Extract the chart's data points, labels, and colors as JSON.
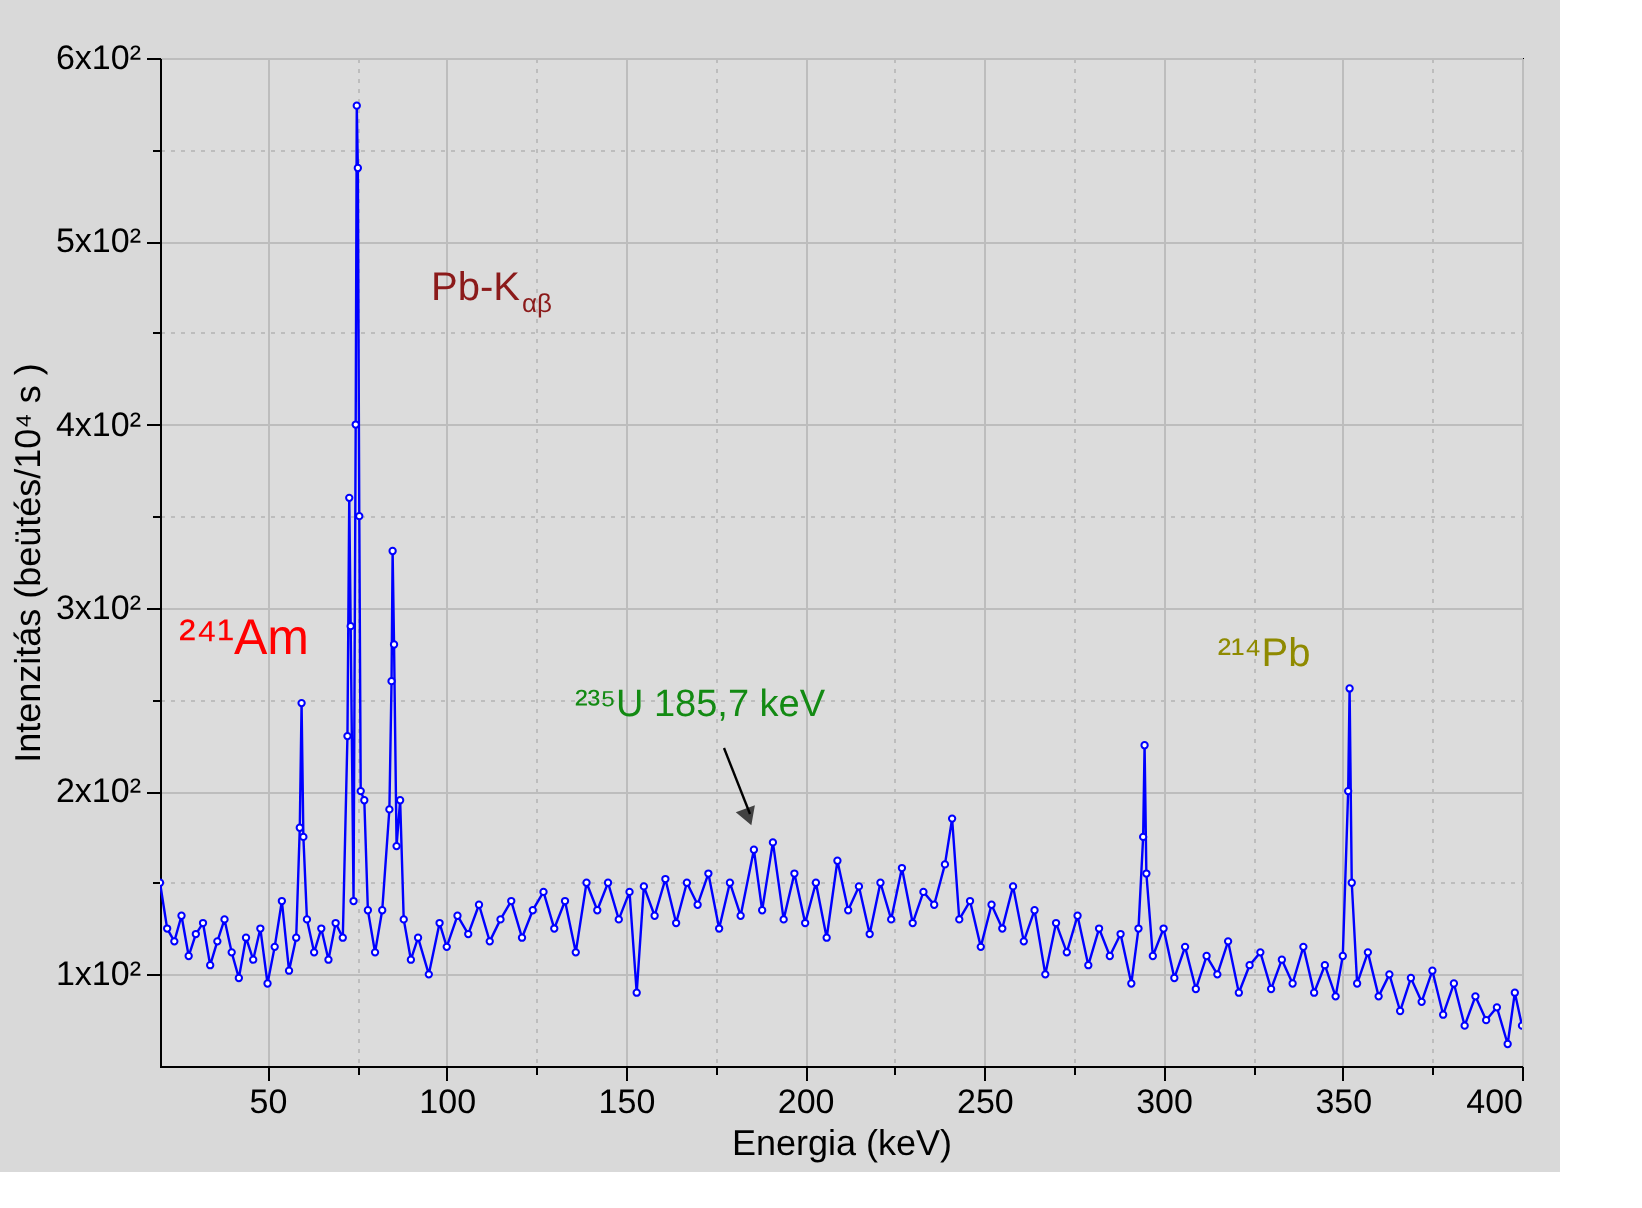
{
  "chart_data": {
    "type": "line",
    "xlabel": "Energia (keV)",
    "ylabel": "Intenzitás   (beütés/10⁴ s )",
    "xlim": [
      20,
      400
    ],
    "ylim": [
      50,
      600
    ],
    "xticks": [
      50,
      {
        "value": 75,
        "label": null
      },
      100,
      {
        "value": 125,
        "label": null
      },
      150,
      {
        "value": 175,
        "label": null
      },
      200,
      {
        "value": 225,
        "label": null
      },
      250,
      {
        "value": 275,
        "label": null
      },
      300,
      {
        "value": 325,
        "label": null
      },
      350,
      {
        "value": 375,
        "label": null
      },
      400
    ],
    "yticks": [
      {
        "value": 100,
        "label": "1x10²"
      },
      {
        "value": 150,
        "label": null
      },
      {
        "value": 200,
        "label": "2x10²"
      },
      {
        "value": 250,
        "label": null
      },
      {
        "value": 300,
        "label": "3x10²"
      },
      {
        "value": 350,
        "label": null
      },
      {
        "value": 400,
        "label": "4x10²"
      },
      {
        "value": 450,
        "label": null
      },
      {
        "value": 500,
        "label": "5x10²"
      },
      {
        "value": 550,
        "label": null
      },
      {
        "value": 600,
        "label": "6x10²"
      }
    ],
    "grid": true,
    "marker": "circle",
    "line_style": "solid",
    "annotations": [
      "²⁴¹Am",
      "Pb-K$_{αβ}$",
      "²³⁵U  185,7 keV",
      "²¹⁴Pb"
    ],
    "series": [
      {
        "color": "#0000ff",
        "x": [
          20,
          22,
          24,
          26,
          28,
          30,
          32,
          34,
          36,
          38,
          40,
          42,
          44,
          46,
          48,
          50,
          52,
          54,
          56,
          58,
          59,
          59.5,
          60,
          61,
          63,
          65,
          67,
          69,
          71,
          72.3,
          72.8,
          73.2,
          74,
          74.6,
          74.9,
          75.2,
          75.6,
          76,
          77,
          78,
          80,
          82,
          84,
          84.6,
          84.9,
          85.3,
          86,
          87,
          88,
          90,
          92,
          95,
          98,
          100,
          103,
          106,
          109,
          112,
          115,
          118,
          121,
          124,
          127,
          130,
          133,
          136,
          139,
          142,
          145,
          148,
          151,
          153,
          155,
          158,
          161,
          164,
          167,
          170,
          173,
          176,
          179,
          182,
          185.7,
          188,
          191,
          194,
          197,
          200,
          203,
          206,
          209,
          212,
          215,
          218,
          221,
          224,
          227,
          230,
          233,
          236,
          239,
          241,
          243,
          246,
          249,
          252,
          255,
          258,
          261,
          264,
          267,
          270,
          273,
          276,
          279,
          282,
          285,
          288,
          291,
          293,
          294.3,
          294.7,
          295.2,
          297,
          300,
          303,
          306,
          309,
          312,
          315,
          318,
          321,
          324,
          327,
          330,
          333,
          336,
          339,
          342,
          345,
          348,
          350,
          351.5,
          351.9,
          352.5,
          354,
          357,
          360,
          363,
          366,
          369,
          372,
          375,
          378,
          381,
          384,
          387,
          390,
          393,
          396,
          398,
          400
        ],
        "values": [
          150,
          125,
          118,
          132,
          110,
          122,
          128,
          105,
          118,
          130,
          112,
          98,
          120,
          108,
          125,
          95,
          115,
          140,
          102,
          120,
          180,
          248,
          175,
          130,
          112,
          125,
          108,
          128,
          120,
          230,
          360,
          290,
          140,
          400,
          574,
          540,
          350,
          200,
          195,
          135,
          112,
          135,
          190,
          260,
          331,
          280,
          170,
          195,
          130,
          108,
          120,
          100,
          128,
          115,
          132,
          122,
          138,
          118,
          130,
          140,
          120,
          135,
          145,
          125,
          140,
          112,
          150,
          135,
          150,
          130,
          145,
          90,
          148,
          132,
          152,
          128,
          150,
          138,
          155,
          125,
          150,
          132,
          168,
          135,
          172,
          130,
          155,
          128,
          150,
          120,
          162,
          135,
          148,
          122,
          150,
          130,
          158,
          128,
          145,
          138,
          160,
          185,
          130,
          140,
          115,
          138,
          125,
          148,
          118,
          135,
          100,
          128,
          112,
          132,
          105,
          125,
          110,
          122,
          95,
          125,
          175,
          225,
          155,
          110,
          125,
          98,
          115,
          92,
          110,
          100,
          118,
          90,
          105,
          112,
          92,
          108,
          95,
          115,
          90,
          105,
          88,
          110,
          200,
          256,
          150,
          95,
          112,
          88,
          100,
          80,
          98,
          85,
          102,
          78,
          95,
          72,
          88,
          75,
          82,
          62,
          90,
          72
        ]
      }
    ]
  }
}
